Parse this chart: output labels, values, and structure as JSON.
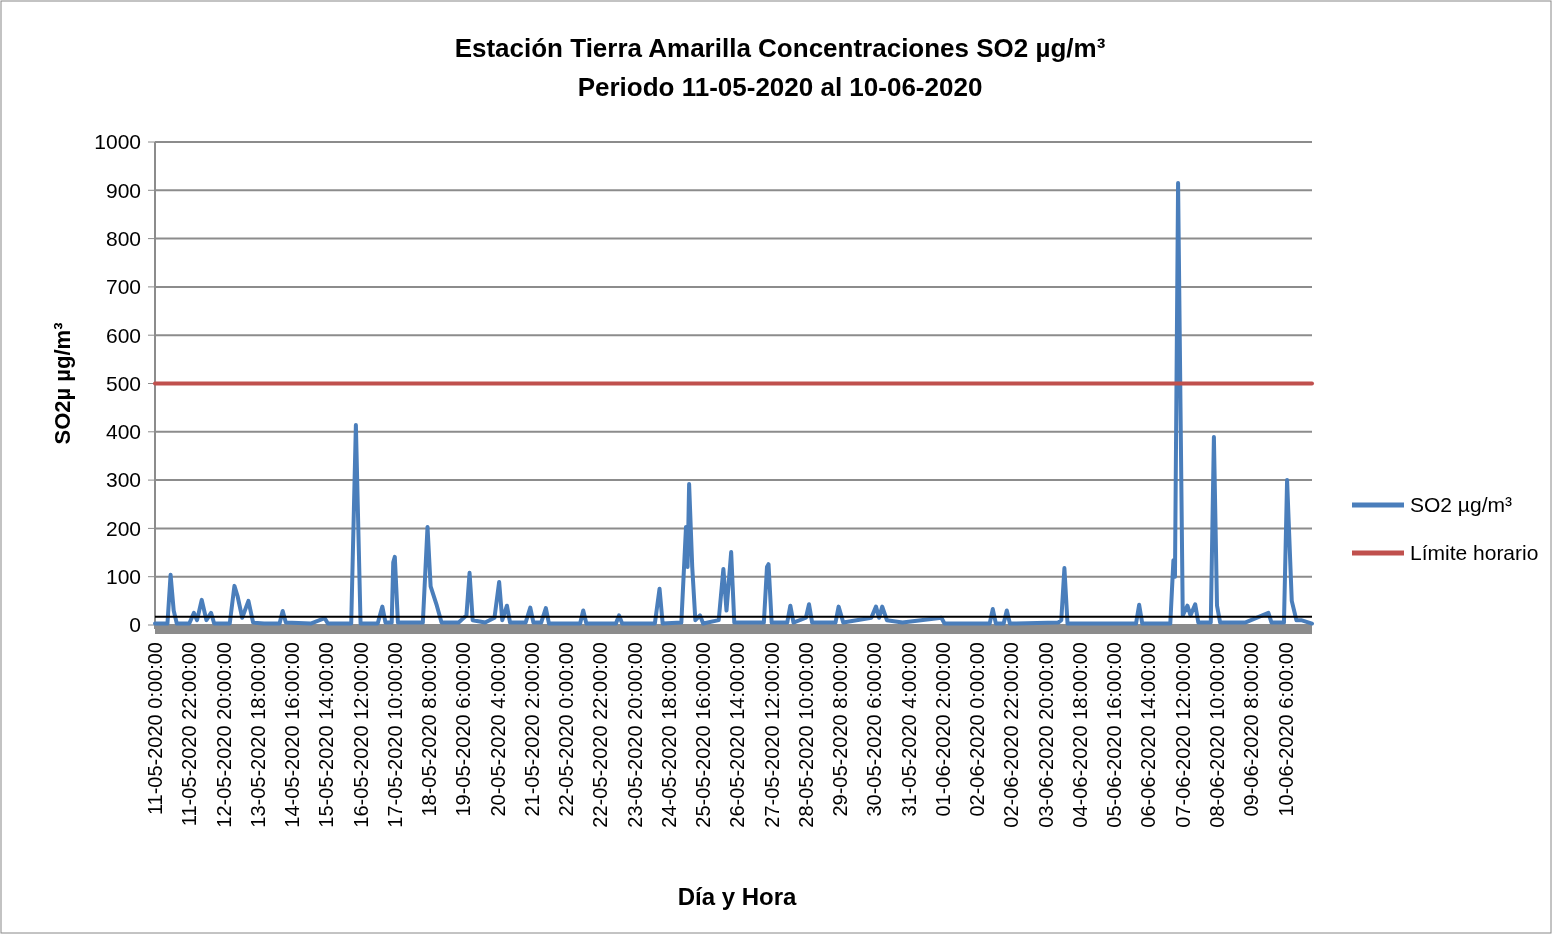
{
  "chart_data": {
    "type": "line",
    "title": "Estación Tierra Amarilla  Concentraciones  SO2 µg/m³",
    "subtitle": "Periodo 11-05-2020 al 10-06-2020",
    "xlabel": "Día y Hora",
    "ylabel": "SO2µ µg/m³",
    "xlim": [
      "2020-05-11T00:00",
      "2020-06-10T23:00"
    ],
    "xticks": [
      {
        "value": "2020-05-11T00:00",
        "label": "11-05-2020 0:00:00"
      },
      {
        "value": "2020-05-11T22:00",
        "label": "11-05-2020 22:00:00"
      },
      {
        "value": "2020-05-12T20:00",
        "label": "12-05-2020 20:00:00"
      },
      {
        "value": "2020-05-13T18:00",
        "label": "13-05-2020 18:00:00"
      },
      {
        "value": "2020-05-14T16:00",
        "label": "14-05-2020 16:00:00"
      },
      {
        "value": "2020-05-15T14:00",
        "label": "15-05-2020 14:00:00"
      },
      {
        "value": "2020-05-16T12:00",
        "label": "16-05-2020 12:00:00"
      },
      {
        "value": "2020-05-17T10:00",
        "label": "17-05-2020 10:00:00"
      },
      {
        "value": "2020-05-18T08:00",
        "label": "18-05-2020 8:00:00"
      },
      {
        "value": "2020-05-19T06:00",
        "label": "19-05-2020 6:00:00"
      },
      {
        "value": "2020-05-20T04:00",
        "label": "20-05-2020 4:00:00"
      },
      {
        "value": "2020-05-21T02:00",
        "label": "21-05-2020 2:00:00"
      },
      {
        "value": "2020-05-22T00:00",
        "label": "22-05-2020 0:00:00"
      },
      {
        "value": "2020-05-22T22:00",
        "label": "22-05-2020 22:00:00"
      },
      {
        "value": "2020-05-23T20:00",
        "label": "23-05-2020 20:00:00"
      },
      {
        "value": "2020-05-24T18:00",
        "label": "24-05-2020 18:00:00"
      },
      {
        "value": "2020-05-25T16:00",
        "label": "25-05-2020 16:00:00"
      },
      {
        "value": "2020-05-26T14:00",
        "label": "26-05-2020 14:00:00"
      },
      {
        "value": "2020-05-27T12:00",
        "label": "27-05-2020 12:00:00"
      },
      {
        "value": "2020-05-28T10:00",
        "label": "28-05-2020 10:00:00"
      },
      {
        "value": "2020-05-29T08:00",
        "label": "29-05-2020 8:00:00"
      },
      {
        "value": "2020-05-30T06:00",
        "label": "30-05-2020 6:00:00"
      },
      {
        "value": "2020-05-31T04:00",
        "label": "31-05-2020 4:00:00"
      },
      {
        "value": "2020-06-01T02:00",
        "label": "01-06-2020 2:00:00"
      },
      {
        "value": "2020-06-02T00:00",
        "label": "02-06-2020 0:00:00"
      },
      {
        "value": "2020-06-02T22:00",
        "label": "02-06-2020 22:00:00"
      },
      {
        "value": "2020-06-03T20:00",
        "label": "03-06-2020 20:00:00"
      },
      {
        "value": "2020-06-04T18:00",
        "label": "04-06-2020 18:00:00"
      },
      {
        "value": "2020-06-05T16:00",
        "label": "05-06-2020 16:00:00"
      },
      {
        "value": "2020-06-06T14:00",
        "label": "06-06-2020 14:00:00"
      },
      {
        "value": "2020-06-07T12:00",
        "label": "07-06-2020 12:00:00"
      },
      {
        "value": "2020-06-08T10:00",
        "label": "08-06-2020 10:00:00"
      },
      {
        "value": "2020-06-09T08:00",
        "label": "09-06-2020 8:00:00"
      },
      {
        "value": "2020-06-10T06:00",
        "label": "10-06-2020 6:00:00"
      }
    ],
    "ylim": [
      0,
      1000
    ],
    "yticks": [
      0,
      100,
      200,
      300,
      400,
      500,
      600,
      700,
      800,
      900,
      1000
    ],
    "grid": "y",
    "legend": "right",
    "ref_lines": [
      {
        "axis": "y",
        "value": 17,
        "color": "#000000"
      }
    ],
    "series": [
      {
        "name": "SO2 µg/m³",
        "color": "#4a7ebb",
        "x": [
          "2020-05-11T00:00",
          "2020-05-11T08:00",
          "2020-05-11T10:00",
          "2020-05-11T12:00",
          "2020-05-11T14:00",
          "2020-05-11T22:00",
          "2020-05-12T01:00",
          "2020-05-12T03:00",
          "2020-05-12T06:00",
          "2020-05-12T09:00",
          "2020-05-12T12:00",
          "2020-05-12T14:00",
          "2020-05-13T00:00",
          "2020-05-13T03:00",
          "2020-05-13T05:00",
          "2020-05-13T08:00",
          "2020-05-13T12:00",
          "2020-05-13T15:00",
          "2020-05-13T22:00",
          "2020-05-14T08:00",
          "2020-05-14T10:00",
          "2020-05-14T12:00",
          "2020-05-15T04:00",
          "2020-05-15T13:00",
          "2020-05-15T15:00",
          "2020-05-16T06:00",
          "2020-05-16T09:00",
          "2020-05-16T12:00",
          "2020-05-16T23:00",
          "2020-05-17T02:00",
          "2020-05-17T04:00",
          "2020-05-17T08:00",
          "2020-05-17T09:00",
          "2020-05-17T10:00",
          "2020-05-17T12:00",
          "2020-05-18T04:00",
          "2020-05-18T07:00",
          "2020-05-18T09:00",
          "2020-05-18T13:00",
          "2020-05-18T16:00",
          "2020-05-19T03:00",
          "2020-05-19T08:00",
          "2020-05-19T10:00",
          "2020-05-19T12:00",
          "2020-05-19T20:00",
          "2020-05-20T02:00",
          "2020-05-20T05:00",
          "2020-05-20T07:00",
          "2020-05-20T10:00",
          "2020-05-20T12:00",
          "2020-05-20T22:00",
          "2020-05-21T01:00",
          "2020-05-21T03:00",
          "2020-05-21T08:00",
          "2020-05-21T11:00",
          "2020-05-21T13:00",
          "2020-05-22T09:00",
          "2020-05-22T11:00",
          "2020-05-22T13:00",
          "2020-05-23T08:00",
          "2020-05-23T10:00",
          "2020-05-23T12:00",
          "2020-05-24T09:00",
          "2020-05-24T12:00",
          "2020-05-24T14:00",
          "2020-05-25T02:00",
          "2020-05-25T05:00",
          "2020-05-25T06:00",
          "2020-05-25T07:00",
          "2020-05-25T09:00",
          "2020-05-25T11:00",
          "2020-05-25T14:00",
          "2020-05-25T16:00",
          "2020-05-26T02:00",
          "2020-05-26T05:00",
          "2020-05-26T07:00",
          "2020-05-26T10:00",
          "2020-05-26T12:00",
          "2020-05-27T07:00",
          "2020-05-27T09:00",
          "2020-05-27T10:00",
          "2020-05-27T12:00",
          "2020-05-27T22:00",
          "2020-05-28T00:00",
          "2020-05-28T02:00",
          "2020-05-28T10:00",
          "2020-05-28T12:00",
          "2020-05-28T14:00",
          "2020-05-29T05:00",
          "2020-05-29T07:00",
          "2020-05-29T10:00",
          "2020-05-30T04:00",
          "2020-05-30T07:00",
          "2020-05-30T09:00",
          "2020-05-30T11:00",
          "2020-05-30T14:00",
          "2020-05-31T00:00",
          "2020-06-01T01:00",
          "2020-06-01T03:00",
          "2020-06-02T08:00",
          "2020-06-02T10:00",
          "2020-06-02T12:00",
          "2020-06-02T17:00",
          "2020-06-02T19:00",
          "2020-06-02T21:00",
          "2020-06-04T04:00",
          "2020-06-04T06:00",
          "2020-06-04T08:00",
          "2020-06-04T10:00",
          "2020-06-06T06:00",
          "2020-06-06T08:00",
          "2020-06-06T10:00",
          "2020-06-07T04:00",
          "2020-06-07T06:00",
          "2020-06-07T07:00",
          "2020-06-07T09:00",
          "2020-06-07T12:00",
          "2020-06-07T15:00",
          "2020-06-07T17:00",
          "2020-06-07T20:00",
          "2020-06-07T22:00",
          "2020-06-08T06:00",
          "2020-06-08T08:00",
          "2020-06-08T10:00",
          "2020-06-08T12:00",
          "2020-06-09T04:00",
          "2020-06-09T19:00",
          "2020-06-09T21:00",
          "2020-06-10T05:00",
          "2020-06-10T07:00",
          "2020-06-10T10:00",
          "2020-06-10T13:00",
          "2020-06-10T16:00",
          "2020-06-10T23:00"
        ],
        "values": [
          3,
          3,
          104,
          30,
          3,
          3,
          25,
          10,
          52,
          10,
          25,
          3,
          3,
          81,
          60,
          15,
          50,
          5,
          3,
          3,
          29,
          5,
          3,
          14,
          3,
          3,
          414,
          3,
          3,
          38,
          5,
          5,
          130,
          141,
          5,
          5,
          203,
          80,
          40,
          5,
          5,
          20,
          108,
          10,
          5,
          15,
          89,
          10,
          40,
          5,
          5,
          36,
          5,
          5,
          35,
          3,
          3,
          30,
          3,
          3,
          20,
          3,
          3,
          75,
          3,
          5,
          203,
          120,
          292,
          120,
          10,
          20,
          3,
          10,
          116,
          30,
          151,
          5,
          5,
          120,
          126,
          5,
          5,
          40,
          5,
          15,
          43,
          5,
          5,
          38,
          5,
          15,
          38,
          15,
          38,
          10,
          5,
          15,
          3,
          3,
          33,
          3,
          3,
          30,
          3,
          5,
          10,
          118,
          3,
          3,
          42,
          3,
          3,
          134,
          100,
          915,
          20,
          40,
          20,
          43,
          5,
          5,
          389,
          40,
          5,
          5,
          25,
          5,
          5,
          300,
          50,
          10,
          10,
          3
        ]
      },
      {
        "name": "Límite horario",
        "color": "#c0504d",
        "x": [
          "2020-05-11T00:00",
          "2020-06-10T23:00"
        ],
        "values": [
          500,
          500
        ]
      }
    ]
  }
}
